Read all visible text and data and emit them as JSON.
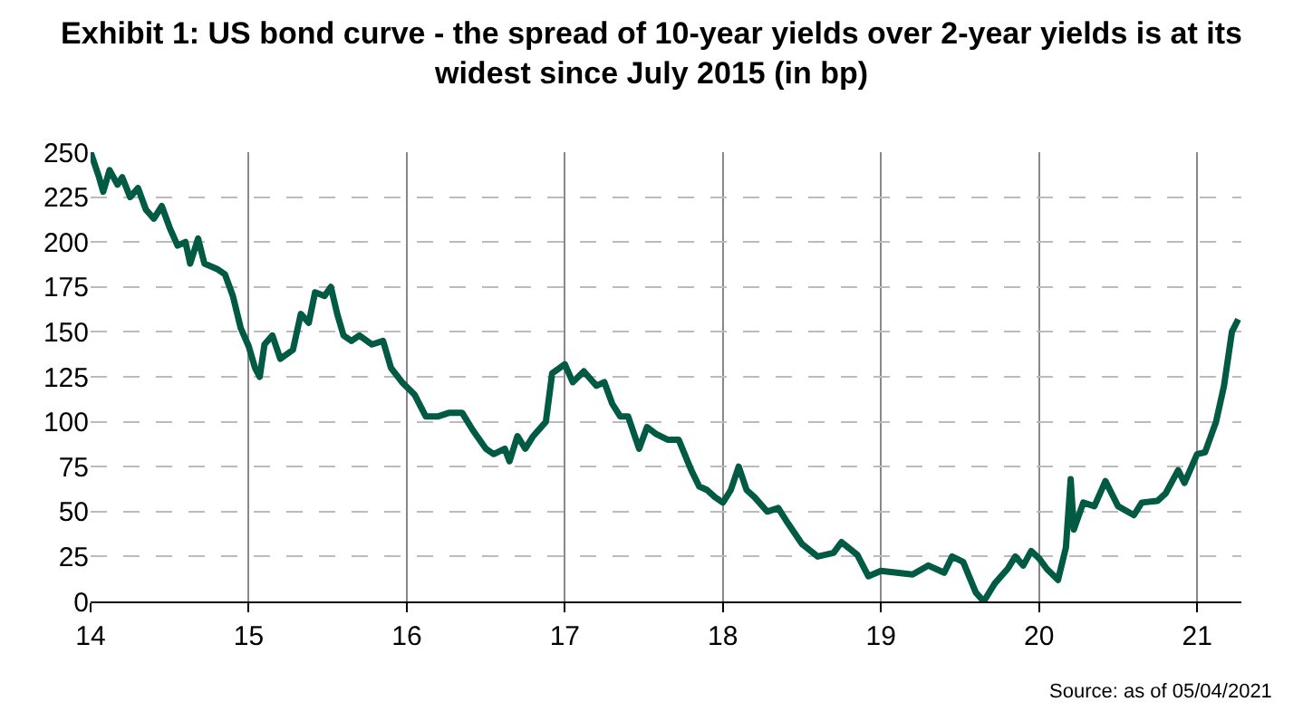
{
  "chart_data": {
    "type": "line",
    "title": "Exhibit 1: US bond curve - the spread of 10-year yields over 2-year yields is at its widest since July 2015 (in bp)",
    "annotations": [
      "Source: as of 05/04/2021"
    ],
    "x": [
      14.0,
      14.05,
      14.08,
      14.12,
      14.17,
      14.2,
      14.25,
      14.3,
      14.35,
      14.4,
      14.45,
      14.5,
      14.55,
      14.6,
      14.63,
      14.68,
      14.72,
      14.8,
      14.85,
      14.9,
      14.95,
      15.0,
      15.04,
      15.07,
      15.1,
      15.15,
      15.2,
      15.28,
      15.33,
      15.38,
      15.42,
      15.48,
      15.52,
      15.56,
      15.6,
      15.65,
      15.7,
      15.78,
      15.85,
      15.9,
      15.97,
      16.05,
      16.12,
      16.2,
      16.27,
      16.35,
      16.42,
      16.5,
      16.55,
      16.62,
      16.65,
      16.7,
      16.75,
      16.8,
      16.88,
      16.92,
      17.0,
      17.05,
      17.12,
      17.2,
      17.25,
      17.3,
      17.35,
      17.4,
      17.47,
      17.52,
      17.58,
      17.65,
      17.72,
      17.8,
      17.85,
      17.9,
      17.95,
      18.0,
      18.05,
      18.1,
      18.15,
      18.2,
      18.28,
      18.35,
      18.4,
      18.5,
      18.6,
      18.7,
      18.75,
      18.85,
      18.92,
      19.0,
      19.1,
      19.2,
      19.3,
      19.4,
      19.45,
      19.52,
      19.6,
      19.65,
      19.72,
      19.8,
      19.85,
      19.9,
      19.95,
      20.0,
      20.05,
      20.12,
      20.17,
      20.2,
      20.22,
      20.28,
      20.35,
      20.42,
      20.5,
      20.6,
      20.65,
      20.75,
      20.8,
      20.88,
      20.92,
      21.0,
      21.05,
      21.12,
      21.17,
      21.22,
      21.26
    ],
    "series": [
      {
        "color": "#005a44",
        "values": [
          250,
          237,
          228,
          240,
          232,
          236,
          225,
          230,
          218,
          213,
          220,
          208,
          198,
          200,
          188,
          202,
          188,
          185,
          182,
          170,
          152,
          142,
          130,
          125,
          143,
          148,
          135,
          140,
          160,
          155,
          172,
          170,
          175,
          160,
          148,
          145,
          148,
          143,
          145,
          130,
          122,
          115,
          103,
          103,
          105,
          105,
          95,
          85,
          82,
          85,
          78,
          92,
          85,
          92,
          100,
          127,
          132,
          122,
          128,
          120,
          122,
          110,
          103,
          103,
          85,
          97,
          93,
          90,
          90,
          73,
          64,
          62,
          58,
          55,
          62,
          75,
          62,
          58,
          50,
          52,
          45,
          32,
          25,
          27,
          33,
          26,
          14,
          17,
          16,
          15,
          20,
          16,
          25,
          22,
          5,
          0,
          10,
          18,
          25,
          20,
          28,
          24,
          18,
          12,
          30,
          68,
          40,
          55,
          53,
          67,
          53,
          48,
          55,
          56,
          60,
          73,
          66,
          82,
          83,
          100,
          120,
          150,
          157
        ]
      }
    ],
    "xlim": [
      14,
      21.28
    ],
    "xticks": [
      14,
      15,
      16,
      17,
      18,
      19,
      20,
      21
    ],
    "ylim": [
      0,
      250
    ],
    "yticks": [
      0,
      25,
      50,
      75,
      100,
      125,
      150,
      175,
      200,
      225,
      250
    ],
    "grid": true
  }
}
